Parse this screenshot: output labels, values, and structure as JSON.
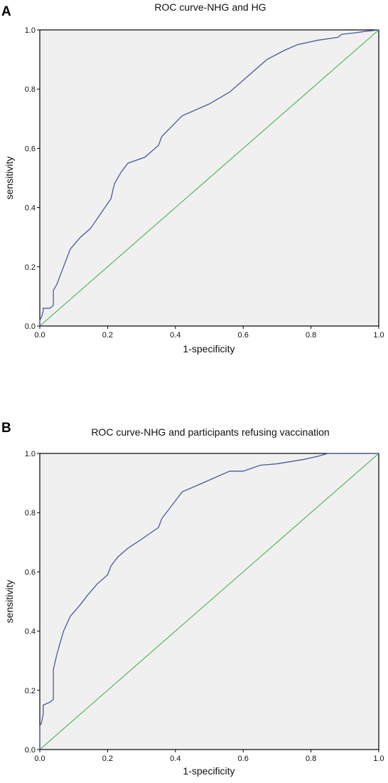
{
  "chart_data": [
    {
      "type": "line",
      "panel_label": "A",
      "title": "ROC curve-NHG and HG",
      "xlabel": "1-specificity",
      "ylabel": "sensitivity",
      "xlim": [
        0,
        1
      ],
      "ylim": [
        0,
        1
      ],
      "x_ticks": [
        "0.0",
        "0.2",
        "0.4",
        "0.6",
        "0.8",
        "1.0"
      ],
      "y_ticks": [
        "0.0",
        "0.2",
        "0.4",
        "0.6",
        "0.8",
        "1.0"
      ],
      "grid": false,
      "colors": {
        "roc": "#4a5a9a",
        "reference": "#3cb44b",
        "background": "#f0f0f0"
      },
      "series": [
        {
          "x": [
            0,
            0,
            0.005,
            0.01,
            0.01,
            0.03,
            0.04,
            0.04,
            0.05,
            0.06,
            0.07,
            0.09,
            0.12,
            0.15,
            0.18,
            0.21,
            0.22,
            0.24,
            0.26,
            0.31,
            0.35,
            0.36,
            0.42,
            0.5,
            0.56,
            0.6,
            0.67,
            0.72,
            0.76,
            0.82,
            0.88,
            0.89,
            0.93,
            0.96,
            1.0
          ],
          "y": [
            0,
            0.02,
            0.03,
            0.05,
            0.06,
            0.06,
            0.07,
            0.12,
            0.14,
            0.17,
            0.2,
            0.26,
            0.3,
            0.33,
            0.38,
            0.43,
            0.48,
            0.52,
            0.55,
            0.57,
            0.61,
            0.64,
            0.71,
            0.75,
            0.79,
            0.83,
            0.9,
            0.93,
            0.95,
            0.965,
            0.975,
            0.985,
            0.99,
            0.995,
            1.0
          ]
        },
        {
          "x": [
            0,
            1
          ],
          "y": [
            0,
            1
          ]
        }
      ]
    },
    {
      "type": "line",
      "panel_label": "B",
      "title": "ROC curve-NHG and participants refusing vaccination",
      "xlabel": "1-specificity",
      "ylabel": "sensitivity",
      "xlim": [
        0,
        1
      ],
      "ylim": [
        0,
        1
      ],
      "x_ticks": [
        "0.0",
        "0.2",
        "0.4",
        "0.6",
        "0.8",
        "1.0"
      ],
      "y_ticks": [
        "0.0",
        "0.2",
        "0.4",
        "0.6",
        "0.8",
        "1.0"
      ],
      "grid": false,
      "colors": {
        "roc": "#4a5a9a",
        "reference": "#3cb44b",
        "background": "#f0f0f0"
      },
      "series": [
        {
          "x": [
            0,
            0,
            0.005,
            0.01,
            0.01,
            0.03,
            0.04,
            0.04,
            0.05,
            0.06,
            0.07,
            0.09,
            0.12,
            0.14,
            0.17,
            0.2,
            0.21,
            0.23,
            0.26,
            0.3,
            0.35,
            0.36,
            0.42,
            0.48,
            0.56,
            0.6,
            0.65,
            0.7,
            0.78,
            0.82,
            0.85,
            0.9,
            1.0
          ],
          "y": [
            0,
            0.08,
            0.09,
            0.12,
            0.15,
            0.16,
            0.17,
            0.27,
            0.32,
            0.36,
            0.4,
            0.45,
            0.49,
            0.52,
            0.56,
            0.59,
            0.62,
            0.65,
            0.68,
            0.71,
            0.75,
            0.78,
            0.87,
            0.9,
            0.94,
            0.94,
            0.96,
            0.965,
            0.98,
            0.99,
            1.0,
            1.0,
            1.0
          ]
        },
        {
          "x": [
            0,
            1
          ],
          "y": [
            0,
            1
          ]
        }
      ]
    }
  ]
}
